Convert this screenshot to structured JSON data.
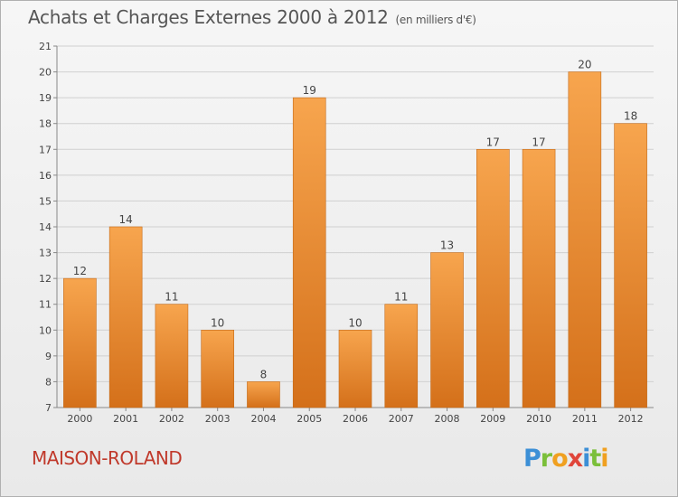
{
  "title": "Achats et Charges Externes 2000 à 2012",
  "subtitle": "(en milliers d'€)",
  "commune": "MAISON-ROLAND",
  "logo_text": "Proxiti",
  "colors": {
    "bar_top": "#f7a54e",
    "bar_bottom": "#d4701a",
    "commune": "#c0392b",
    "grid": "#d0d0d0"
  },
  "chart_data": {
    "type": "bar",
    "title": "Achats et Charges Externes 2000 à 2012",
    "subtitle": "(en milliers d'€)",
    "categories": [
      "2000",
      "2001",
      "2002",
      "2003",
      "2004",
      "2005",
      "2006",
      "2007",
      "2008",
      "2009",
      "2010",
      "2011",
      "2012"
    ],
    "values": [
      12,
      14,
      11,
      10,
      8,
      19,
      10,
      11,
      13,
      17,
      17,
      20,
      18
    ],
    "ylim": [
      7,
      21
    ],
    "yticks": [
      7,
      8,
      9,
      10,
      11,
      12,
      13,
      14,
      15,
      16,
      17,
      18,
      19,
      20,
      21
    ],
    "grid": true,
    "legend": "none"
  }
}
